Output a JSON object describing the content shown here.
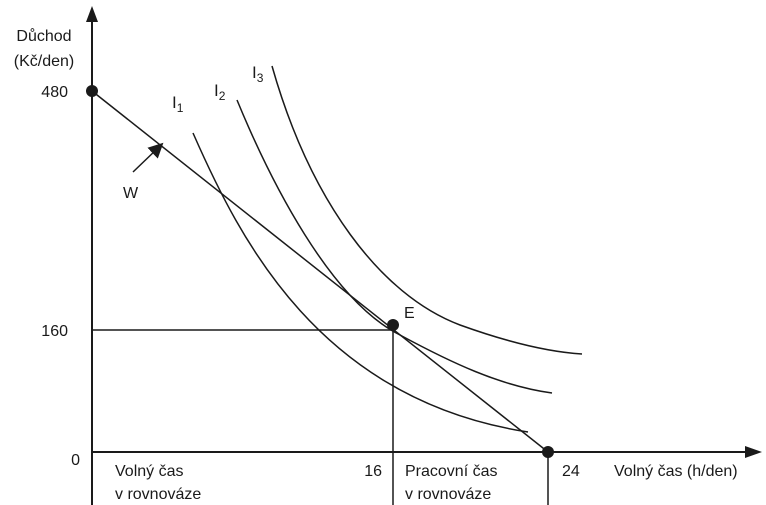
{
  "axes": {
    "y_title_line1": "Důchod",
    "y_title_line2": "(Kč/den)",
    "x_title": "Volný čas (h/den)",
    "y_ticks": [
      "480",
      "160",
      "0"
    ],
    "x_ticks": [
      "16",
      "24"
    ]
  },
  "labels": {
    "budget_line": "W",
    "equilibrium": "E",
    "curve_letter": "I",
    "curves": [
      "1",
      "2",
      "3"
    ]
  },
  "regions": {
    "leisure_line1": "Volný čas",
    "leisure_line2": "v rovnováze",
    "work_line1": "Pracovní čas",
    "work_line2": "v rovnováze"
  },
  "chart_data": {
    "type": "line",
    "xlim": [
      0,
      24
    ],
    "ylim": [
      0,
      480
    ],
    "budget_line": {
      "name": "W",
      "points": [
        [
          0,
          480
        ],
        [
          24,
          0
        ]
      ]
    },
    "equilibrium": {
      "name": "E",
      "x": 16,
      "y": 160
    },
    "indifference_curves": [
      "I1",
      "I2",
      "I3"
    ]
  }
}
